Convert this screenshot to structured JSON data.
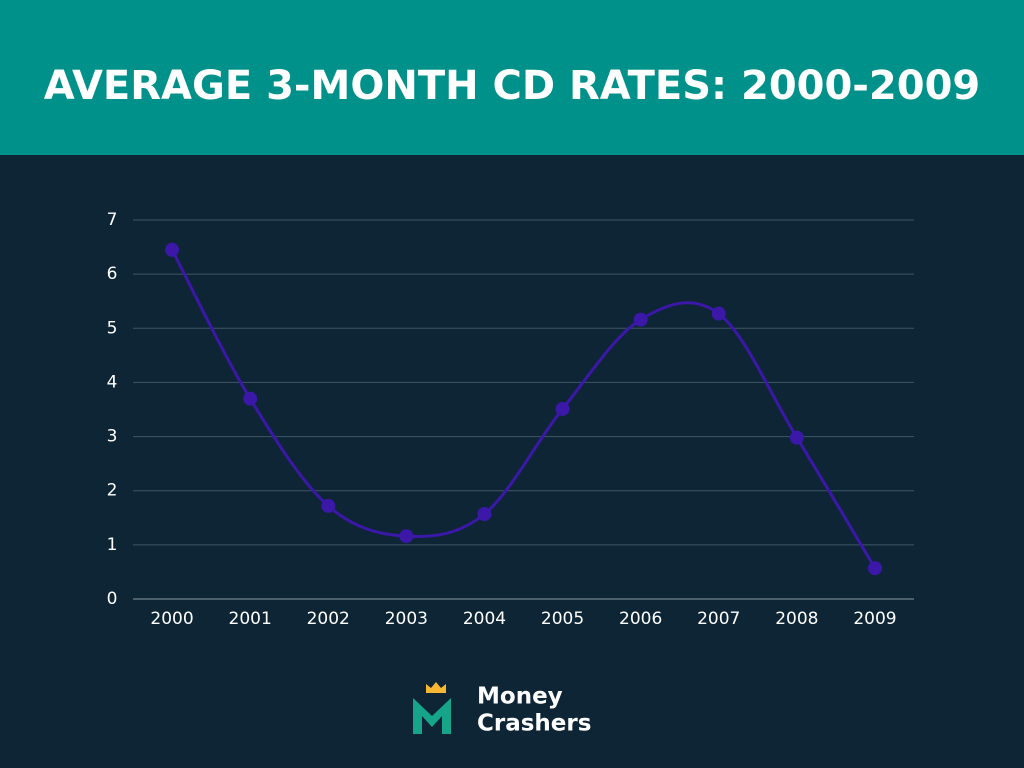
{
  "chart_data": {
    "type": "line",
    "title": "AVERAGE 3-MONTH CD RATES: 2000-2009",
    "categories": [
      "2000",
      "2001",
      "2002",
      "2003",
      "2004",
      "2005",
      "2006",
      "2007",
      "2008",
      "2009"
    ],
    "values": [
      6.45,
      3.7,
      1.72,
      1.16,
      1.57,
      3.51,
      5.16,
      5.27,
      2.98,
      0.57
    ],
    "color": "#3b18a8",
    "ylim": [
      0,
      7
    ],
    "yticks": [
      0,
      1,
      2,
      3,
      4,
      5,
      6,
      7
    ],
    "grid": true,
    "smooth": true
  },
  "logo": {
    "lines": [
      "Money",
      "Crashers"
    ]
  }
}
